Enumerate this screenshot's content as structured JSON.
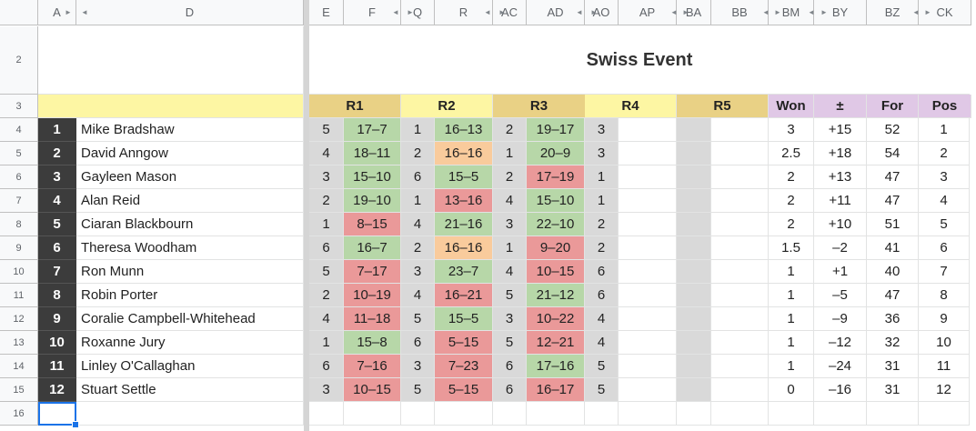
{
  "column_headers": [
    "A",
    "D",
    "E",
    "F",
    "Q",
    "R",
    "AC",
    "AD",
    "AO",
    "AP",
    "BA",
    "BB",
    "BM",
    "BY",
    "BZ",
    "CK"
  ],
  "row_headers": [
    "2",
    "3",
    "4",
    "5",
    "6",
    "7",
    "8",
    "9",
    "10",
    "11",
    "12",
    "13",
    "14",
    "15",
    "16"
  ],
  "title": "Swiss Event",
  "round_headers": [
    "R1",
    "R2",
    "R3",
    "R4",
    "R5"
  ],
  "stat_headers": [
    "Won",
    "±",
    "For",
    "Pos"
  ],
  "players": [
    {
      "seed": "1",
      "name": "Mike Bradshaw",
      "r1_opp": "5",
      "r1_score": "17–7",
      "r1_result": "win",
      "r2_opp": "1",
      "r2_score": "16–13",
      "r2_result": "win",
      "r3_opp": "2",
      "r3_score": "19–17",
      "r3_result": "win",
      "r4_opp": "3",
      "won": "3",
      "diff": "+15",
      "for": "52",
      "pos": "1"
    },
    {
      "seed": "2",
      "name": "David Anngow",
      "r1_opp": "4",
      "r1_score": "18–11",
      "r1_result": "win",
      "r2_opp": "2",
      "r2_score": "16–16",
      "r2_result": "draw",
      "r3_opp": "1",
      "r3_score": "20–9",
      "r3_result": "win",
      "r4_opp": "3",
      "won": "2.5",
      "diff": "+18",
      "for": "54",
      "pos": "2"
    },
    {
      "seed": "3",
      "name": "Gayleen Mason",
      "r1_opp": "3",
      "r1_score": "15–10",
      "r1_result": "win",
      "r2_opp": "6",
      "r2_score": "15–5",
      "r2_result": "win",
      "r3_opp": "2",
      "r3_score": "17–19",
      "r3_result": "loss",
      "r4_opp": "1",
      "won": "2",
      "diff": "+13",
      "for": "47",
      "pos": "3"
    },
    {
      "seed": "4",
      "name": "Alan Reid",
      "r1_opp": "2",
      "r1_score": "19–10",
      "r1_result": "win",
      "r2_opp": "1",
      "r2_score": "13–16",
      "r2_result": "loss",
      "r3_opp": "4",
      "r3_score": "15–10",
      "r3_result": "win",
      "r4_opp": "1",
      "won": "2",
      "diff": "+11",
      "for": "47",
      "pos": "4"
    },
    {
      "seed": "5",
      "name": "Ciaran Blackbourn",
      "r1_opp": "1",
      "r1_score": "8–15",
      "r1_result": "loss",
      "r2_opp": "4",
      "r2_score": "21–16",
      "r2_result": "win",
      "r3_opp": "3",
      "r3_score": "22–10",
      "r3_result": "win",
      "r4_opp": "2",
      "won": "2",
      "diff": "+10",
      "for": "51",
      "pos": "5"
    },
    {
      "seed": "6",
      "name": "Theresa Woodham",
      "r1_opp": "6",
      "r1_score": "16–7",
      "r1_result": "win",
      "r2_opp": "2",
      "r2_score": "16–16",
      "r2_result": "draw",
      "r3_opp": "1",
      "r3_score": "9–20",
      "r3_result": "loss",
      "r4_opp": "2",
      "won": "1.5",
      "diff": "–2",
      "for": "41",
      "pos": "6"
    },
    {
      "seed": "7",
      "name": "Ron Munn",
      "r1_opp": "5",
      "r1_score": "7–17",
      "r1_result": "loss",
      "r2_opp": "3",
      "r2_score": "23–7",
      "r2_result": "win",
      "r3_opp": "4",
      "r3_score": "10–15",
      "r3_result": "loss",
      "r4_opp": "6",
      "won": "1",
      "diff": "+1",
      "for": "40",
      "pos": "7"
    },
    {
      "seed": "8",
      "name": "Robin Porter",
      "r1_opp": "2",
      "r1_score": "10–19",
      "r1_result": "loss",
      "r2_opp": "4",
      "r2_score": "16–21",
      "r2_result": "loss",
      "r3_opp": "5",
      "r3_score": "21–12",
      "r3_result": "win",
      "r4_opp": "6",
      "won": "1",
      "diff": "–5",
      "for": "47",
      "pos": "8"
    },
    {
      "seed": "9",
      "name": "Coralie Campbell-Whitehead",
      "r1_opp": "4",
      "r1_score": "11–18",
      "r1_result": "loss",
      "r2_opp": "5",
      "r2_score": "15–5",
      "r2_result": "win",
      "r3_opp": "3",
      "r3_score": "10–22",
      "r3_result": "loss",
      "r4_opp": "4",
      "won": "1",
      "diff": "–9",
      "for": "36",
      "pos": "9"
    },
    {
      "seed": "10",
      "name": "Roxanne Jury",
      "r1_opp": "1",
      "r1_score": "15–8",
      "r1_result": "win",
      "r2_opp": "6",
      "r2_score": "5–15",
      "r2_result": "loss",
      "r3_opp": "5",
      "r3_score": "12–21",
      "r3_result": "loss",
      "r4_opp": "4",
      "won": "1",
      "diff": "–12",
      "for": "32",
      "pos": "10"
    },
    {
      "seed": "11",
      "name": "Linley O'Callaghan",
      "r1_opp": "6",
      "r1_score": "7–16",
      "r1_result": "loss",
      "r2_opp": "3",
      "r2_score": "7–23",
      "r2_result": "loss",
      "r3_opp": "6",
      "r3_score": "17–16",
      "r3_result": "win",
      "r4_opp": "5",
      "won": "1",
      "diff": "–24",
      "for": "31",
      "pos": "11"
    },
    {
      "seed": "12",
      "name": "Stuart Settle",
      "r1_opp": "3",
      "r1_score": "10–15",
      "r1_result": "loss",
      "r2_opp": "5",
      "r2_score": "5–15",
      "r2_result": "loss",
      "r3_opp": "6",
      "r3_score": "16–17",
      "r3_result": "loss",
      "r4_opp": "5",
      "won": "0",
      "diff": "–16",
      "for": "31",
      "pos": "12"
    }
  ],
  "colors": {
    "win": "#b7d7a8",
    "loss": "#ea9999",
    "draw": "#f9cb9c",
    "opp": "#d9d9d9",
    "round_odd": "#e9d185",
    "round_even": "#fdf6a3",
    "stats": "#e0c8e6",
    "name_header": "#fdf6a3",
    "seed": "#3c3c3c",
    "selection": "#1a73e8"
  }
}
